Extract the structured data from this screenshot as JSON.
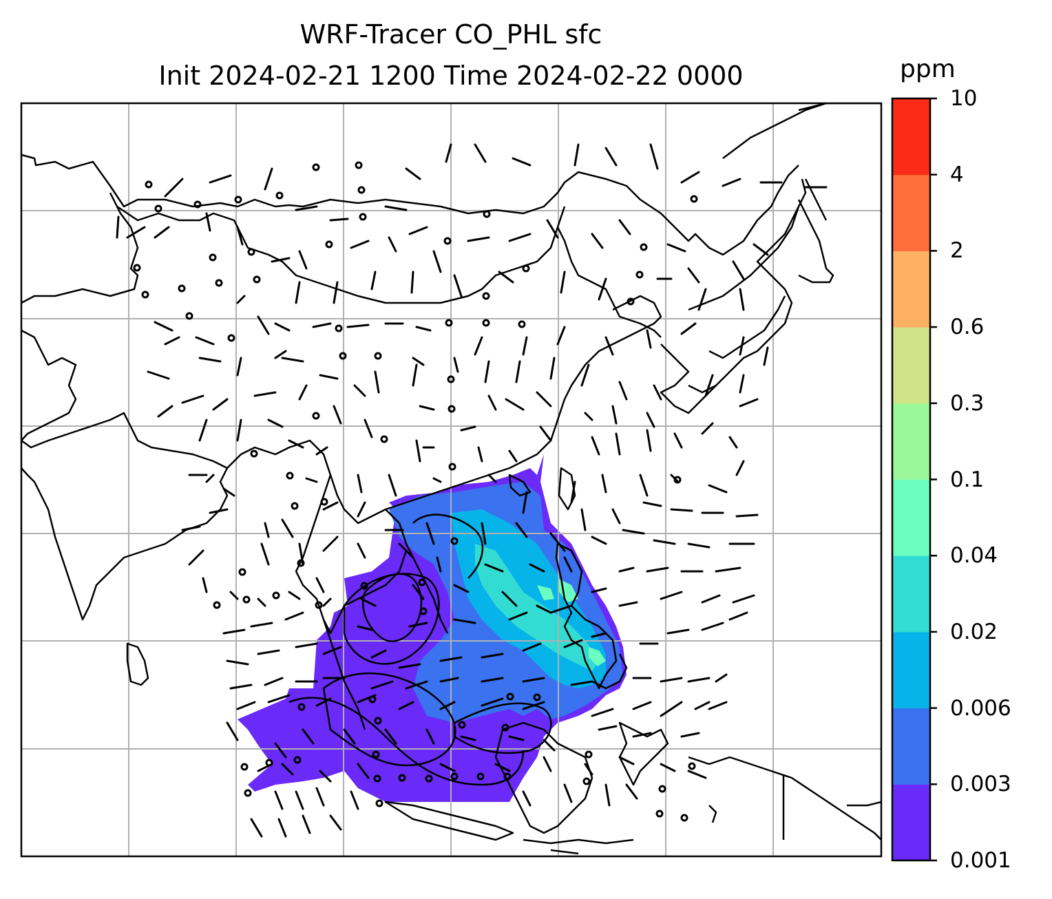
{
  "title": {
    "line1": "WRF-Tracer CO_PHL sfc",
    "line2": "Init 2024-02-21 1200 Time 2024-02-22 0000"
  },
  "colorbar": {
    "unit": "ppm",
    "levels": [
      "0.001",
      "0.003",
      "0.006",
      "0.02",
      "0.04",
      "0.1",
      "0.3",
      "0.6",
      "2",
      "4",
      "10"
    ],
    "colors": [
      "#6a2af8",
      "#3a72f0",
      "#06b4ea",
      "#33dcd2",
      "#6affc0",
      "#9bf89a",
      "#cfe285",
      "#feb063",
      "#fd6e3a",
      "#fc2b18"
    ]
  },
  "map": {
    "field": "CO_PHL surface tracer concentration",
    "overlays": [
      "coastlines",
      "country-borders",
      "gridlines",
      "wind-barbs",
      "contour-lines"
    ]
  }
}
